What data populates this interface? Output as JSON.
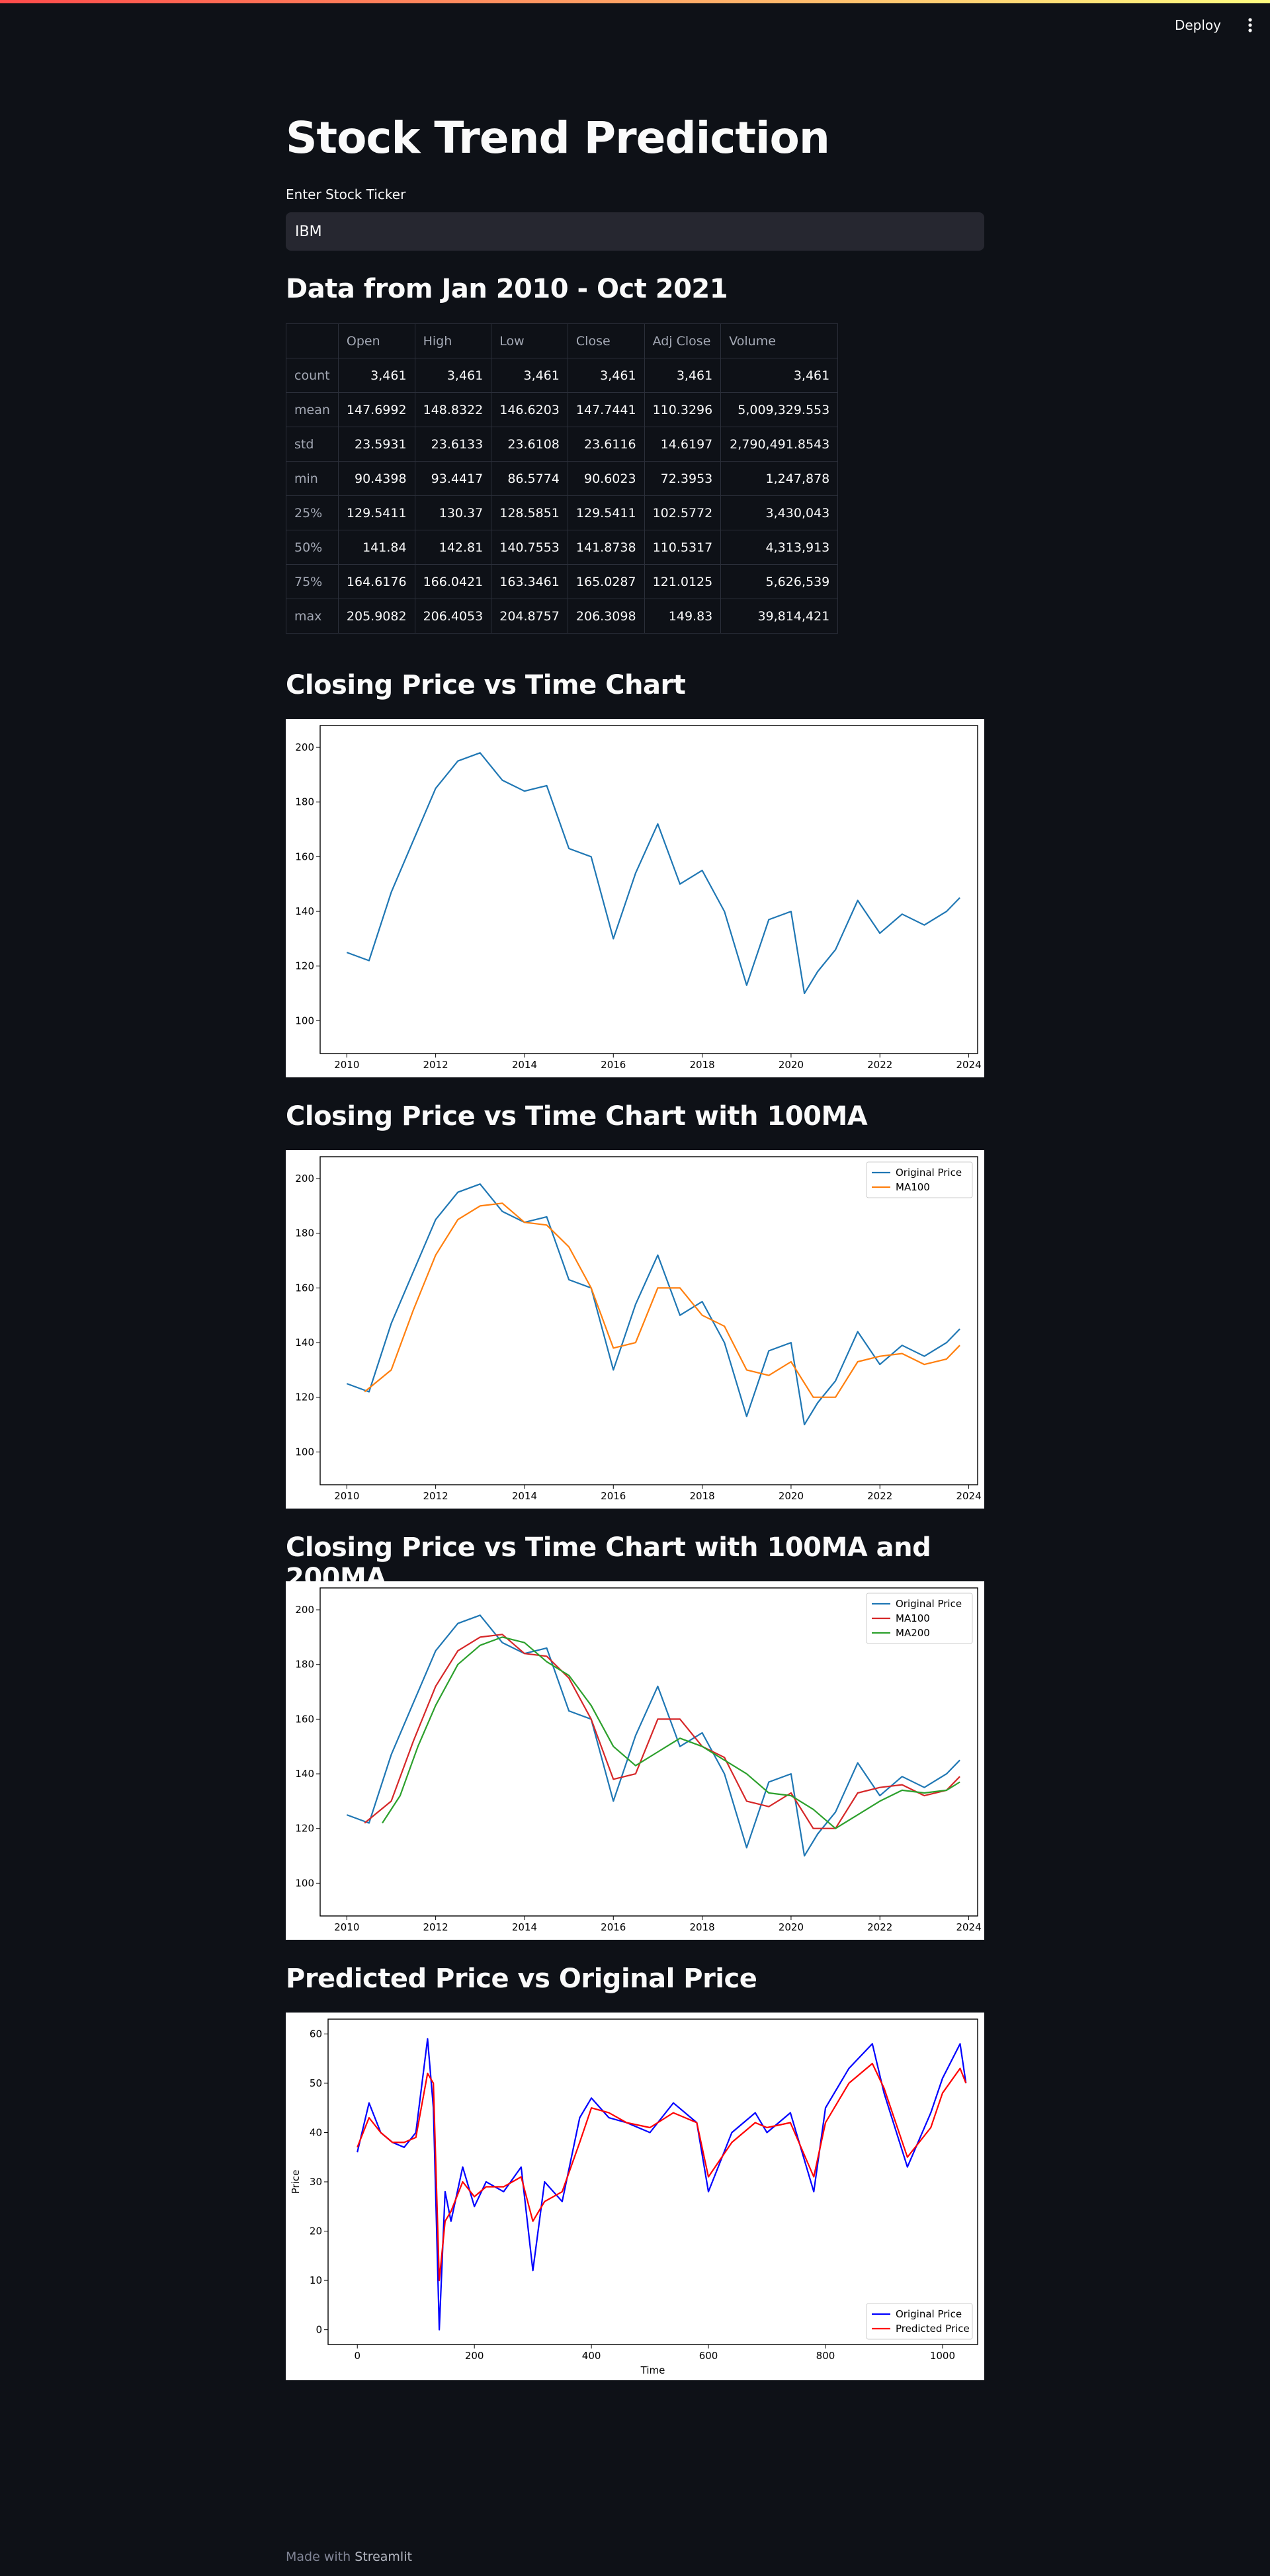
{
  "header": {
    "deploy_label": "Deploy"
  },
  "page": {
    "title": "Stock Trend Prediction",
    "ticker_label": "Enter Stock Ticker",
    "ticker_value": "IBM",
    "data_heading": "Data from Jan 2010 - Oct 2021",
    "chart1_heading": "Closing Price vs Time Chart",
    "chart2_heading": "Closing Price vs Time Chart with 100MA",
    "chart3_heading": "Closing Price vs Time Chart with 100MA and 200MA",
    "chart4_heading": "Predicted Price vs Original Price"
  },
  "stats_table": {
    "columns": [
      "",
      "Open",
      "High",
      "Low",
      "Close",
      "Adj Close",
      "Volume"
    ],
    "rows": [
      [
        "count",
        "3,461",
        "3,461",
        "3,461",
        "3,461",
        "3,461",
        "3,461"
      ],
      [
        "mean",
        "147.6992",
        "148.8322",
        "146.6203",
        "147.7441",
        "110.3296",
        "5,009,329.553"
      ],
      [
        "std",
        "23.5931",
        "23.6133",
        "23.6108",
        "23.6116",
        "14.6197",
        "2,790,491.8543"
      ],
      [
        "min",
        "90.4398",
        "93.4417",
        "86.5774",
        "90.6023",
        "72.3953",
        "1,247,878"
      ],
      [
        "25%",
        "129.5411",
        "130.37",
        "128.5851",
        "129.5411",
        "102.5772",
        "3,430,043"
      ],
      [
        "50%",
        "141.84",
        "142.81",
        "140.7553",
        "141.8738",
        "110.5317",
        "4,313,913"
      ],
      [
        "75%",
        "164.6176",
        "166.0421",
        "163.3461",
        "165.0287",
        "121.0125",
        "5,626,539"
      ],
      [
        "max",
        "205.9082",
        "206.4053",
        "204.8757",
        "206.3098",
        "149.83",
        "39,814,421"
      ]
    ]
  },
  "footer": {
    "made_with": "Made with ",
    "brand": "Streamlit"
  },
  "chart_data": [
    {
      "type": "line",
      "x_ticks": [
        "2010",
        "2012",
        "2014",
        "2016",
        "2018",
        "2020",
        "2022",
        "2024"
      ],
      "y_ticks": [
        "100",
        "120",
        "140",
        "160",
        "180",
        "200"
      ],
      "xlim": [
        2009.4,
        2024.2
      ],
      "ylim": [
        88,
        208
      ],
      "series": [
        {
          "color": "#1f77b4",
          "x": [
            2010.0,
            2010.5,
            2011.0,
            2011.5,
            2012.0,
            2012.5,
            2013.0,
            2013.5,
            2014.0,
            2014.5,
            2015.0,
            2015.5,
            2016.0,
            2016.5,
            2017.0,
            2017.5,
            2018.0,
            2018.5,
            2019.0,
            2019.5,
            2020.0,
            2020.3,
            2020.6,
            2021.0,
            2021.5,
            2022.0,
            2022.5,
            2023.0,
            2023.5,
            2023.8
          ],
          "y": [
            125,
            122,
            147,
            166,
            185,
            195,
            198,
            188,
            184,
            186,
            163,
            160,
            130,
            154,
            172,
            150,
            155,
            140,
            113,
            137,
            140,
            110,
            118,
            126,
            144,
            132,
            139,
            135,
            140,
            145
          ]
        }
      ],
      "grid": false,
      "legend": "none"
    },
    {
      "type": "line",
      "x_ticks": [
        "2010",
        "2012",
        "2014",
        "2016",
        "2018",
        "2020",
        "2022",
        "2024"
      ],
      "y_ticks": [
        "100",
        "120",
        "140",
        "160",
        "180",
        "200"
      ],
      "xlim": [
        2009.4,
        2024.2
      ],
      "ylim": [
        88,
        208
      ],
      "series": [
        {
          "name": "Original Price",
          "color": "#1f77b4",
          "x": [
            2010.0,
            2010.5,
            2011.0,
            2011.5,
            2012.0,
            2012.5,
            2013.0,
            2013.5,
            2014.0,
            2014.5,
            2015.0,
            2015.5,
            2016.0,
            2016.5,
            2017.0,
            2017.5,
            2018.0,
            2018.5,
            2019.0,
            2019.5,
            2020.0,
            2020.3,
            2020.6,
            2021.0,
            2021.5,
            2022.0,
            2022.5,
            2023.0,
            2023.5,
            2023.8
          ],
          "y": [
            125,
            122,
            147,
            166,
            185,
            195,
            198,
            188,
            184,
            186,
            163,
            160,
            130,
            154,
            172,
            150,
            155,
            140,
            113,
            137,
            140,
            110,
            118,
            126,
            144,
            132,
            139,
            135,
            140,
            145
          ]
        },
        {
          "name": "MA100",
          "color": "#ff7f0e",
          "x": [
            2010.4,
            2011.0,
            2011.5,
            2012.0,
            2012.5,
            2013.0,
            2013.5,
            2014.0,
            2014.5,
            2015.0,
            2015.5,
            2016.0,
            2016.5,
            2017.0,
            2017.5,
            2018.0,
            2018.5,
            2019.0,
            2019.5,
            2020.0,
            2020.5,
            2021.0,
            2021.5,
            2022.0,
            2022.5,
            2023.0,
            2023.5,
            2023.8
          ],
          "y": [
            122,
            130,
            152,
            172,
            185,
            190,
            191,
            184,
            183,
            175,
            160,
            138,
            140,
            160,
            160,
            150,
            146,
            130,
            128,
            133,
            120,
            120,
            133,
            135,
            136,
            132,
            134,
            139
          ]
        }
      ],
      "grid": false,
      "legend": "top-right"
    },
    {
      "type": "line",
      "x_ticks": [
        "2010",
        "2012",
        "2014",
        "2016",
        "2018",
        "2020",
        "2022",
        "2024"
      ],
      "y_ticks": [
        "100",
        "120",
        "140",
        "160",
        "180",
        "200"
      ],
      "xlim": [
        2009.4,
        2024.2
      ],
      "ylim": [
        88,
        208
      ],
      "series": [
        {
          "name": "Original Price",
          "color": "#1f77b4",
          "x": [
            2010.0,
            2010.5,
            2011.0,
            2011.5,
            2012.0,
            2012.5,
            2013.0,
            2013.5,
            2014.0,
            2014.5,
            2015.0,
            2015.5,
            2016.0,
            2016.5,
            2017.0,
            2017.5,
            2018.0,
            2018.5,
            2019.0,
            2019.5,
            2020.0,
            2020.3,
            2020.6,
            2021.0,
            2021.5,
            2022.0,
            2022.5,
            2023.0,
            2023.5,
            2023.8
          ],
          "y": [
            125,
            122,
            147,
            166,
            185,
            195,
            198,
            188,
            184,
            186,
            163,
            160,
            130,
            154,
            172,
            150,
            155,
            140,
            113,
            137,
            140,
            110,
            118,
            126,
            144,
            132,
            139,
            135,
            140,
            145
          ]
        },
        {
          "name": "MA100",
          "color": "#d62728",
          "x": [
            2010.4,
            2011.0,
            2011.5,
            2012.0,
            2012.5,
            2013.0,
            2013.5,
            2014.0,
            2014.5,
            2015.0,
            2015.5,
            2016.0,
            2016.5,
            2017.0,
            2017.5,
            2018.0,
            2018.5,
            2019.0,
            2019.5,
            2020.0,
            2020.5,
            2021.0,
            2021.5,
            2022.0,
            2022.5,
            2023.0,
            2023.5,
            2023.8
          ],
          "y": [
            122,
            130,
            152,
            172,
            185,
            190,
            191,
            184,
            183,
            175,
            160,
            138,
            140,
            160,
            160,
            150,
            146,
            130,
            128,
            133,
            120,
            120,
            133,
            135,
            136,
            132,
            134,
            139
          ]
        },
        {
          "name": "MA200",
          "color": "#2ca02c",
          "x": [
            2010.8,
            2011.2,
            2011.6,
            2012.0,
            2012.5,
            2013.0,
            2013.5,
            2014.0,
            2014.5,
            2015.0,
            2015.5,
            2016.0,
            2016.5,
            2017.0,
            2017.5,
            2018.0,
            2018.5,
            2019.0,
            2019.5,
            2020.0,
            2020.5,
            2021.0,
            2021.5,
            2022.0,
            2022.5,
            2023.0,
            2023.5,
            2023.8
          ],
          "y": [
            122,
            132,
            150,
            165,
            180,
            187,
            190,
            188,
            181,
            176,
            165,
            150,
            143,
            148,
            153,
            150,
            145,
            140,
            133,
            132,
            127,
            120,
            125,
            130,
            134,
            133,
            134,
            137
          ]
        }
      ],
      "grid": false,
      "legend": "top-right"
    },
    {
      "type": "line",
      "x_ticks": [
        "0",
        "200",
        "400",
        "600",
        "800",
        "1000"
      ],
      "y_ticks": [
        "0",
        "10",
        "20",
        "30",
        "40",
        "50",
        "60"
      ],
      "xlabel": "Time",
      "ylabel": "Price",
      "xlim": [
        -50,
        1060
      ],
      "ylim": [
        -3,
        63
      ],
      "series": [
        {
          "name": "Original Price",
          "color": "#0000ff",
          "x": [
            0,
            20,
            40,
            60,
            80,
            100,
            120,
            130,
            140,
            150,
            160,
            180,
            200,
            220,
            250,
            280,
            300,
            320,
            350,
            380,
            400,
            430,
            460,
            500,
            540,
            580,
            600,
            640,
            680,
            700,
            740,
            780,
            800,
            840,
            880,
            900,
            940,
            980,
            1000,
            1030,
            1040
          ],
          "y": [
            36,
            46,
            40,
            38,
            37,
            40,
            59,
            45,
            0,
            28,
            22,
            33,
            25,
            30,
            28,
            33,
            12,
            30,
            26,
            43,
            47,
            43,
            42,
            40,
            46,
            42,
            28,
            40,
            44,
            40,
            44,
            28,
            45,
            53,
            58,
            48,
            33,
            44,
            51,
            58,
            50
          ]
        },
        {
          "name": "Predicted Price",
          "color": "#ff0000",
          "x": [
            0,
            20,
            40,
            60,
            80,
            100,
            120,
            130,
            140,
            150,
            160,
            180,
            200,
            220,
            250,
            280,
            300,
            320,
            350,
            380,
            400,
            430,
            460,
            500,
            540,
            580,
            600,
            640,
            680,
            700,
            740,
            780,
            800,
            840,
            880,
            900,
            940,
            980,
            1000,
            1030,
            1040
          ],
          "y": [
            37,
            43,
            40,
            38,
            38,
            39,
            52,
            50,
            10,
            22,
            24,
            30,
            27,
            29,
            29,
            31,
            22,
            26,
            28,
            38,
            45,
            44,
            42,
            41,
            44,
            42,
            31,
            38,
            42,
            41,
            42,
            31,
            42,
            50,
            54,
            49,
            35,
            41,
            48,
            53,
            50
          ]
        }
      ],
      "grid": false,
      "legend": "bottom-right"
    }
  ]
}
